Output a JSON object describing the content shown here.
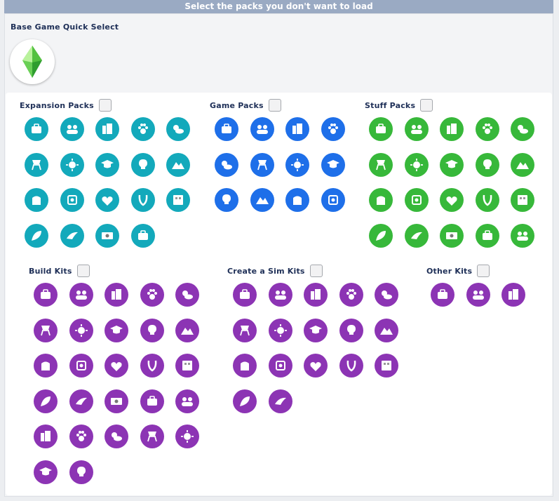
{
  "header": {
    "title": "Select the packs you don't want to load"
  },
  "base_game": {
    "label": "Base Game Quick Select",
    "icon": "plumbob-icon"
  },
  "colors": {
    "expansion": "#13a9bb",
    "game": "#1e6fe9",
    "stuff": "#37b83a",
    "kit": "#8c34b4"
  },
  "sections": {
    "expansion": {
      "label": "Expansion Packs",
      "checked": false,
      "icons": [
        "briefcase-icon",
        "people-group-icon",
        "city-buildings-icon",
        "paw-print-icon",
        "weather-sun-cloud-icon",
        "directors-chair-icon",
        "island-palm-icon",
        "graduation-cap-icon",
        "lightbulb-icon",
        "snowy-mountains-icon",
        "bottle-icon",
        "cottage-cake-icon",
        "house-icon",
        "horseshoe-icon",
        "apartment-building-icon",
        "heart-flower-icon",
        "crow-icon",
        "money-envelope-icon",
        "fern-leaf-icon"
      ]
    },
    "game": {
      "label": "Game Packs",
      "checked": false,
      "icons": [
        "campfire-icon",
        "lotus-icon",
        "fork-knife-icon",
        "vampire-fangs-icon",
        "family-icon",
        "tiki-mask-icon",
        "potion-flask-icon",
        "spellbook-icon",
        "paint-palette-icon",
        "house-upload-icon",
        "cake-stand-icon",
        "wolf-moon-icon"
      ]
    },
    "stuff": {
      "label": "Stuff Packs",
      "checked": false,
      "icons": [
        "diamond-icon",
        "sofa-icon",
        "ice-cream-icon",
        "pumpkin-icon",
        "popcorn-icon",
        "rose-icon",
        "kids-icon",
        "lemonade-icon",
        "tuxedo-icon",
        "bowling-icon",
        "sneaker-icon",
        "toy-blocks-icon",
        "laundry-basket-icon",
        "hamster-icon",
        "letter-m-icon",
        "tiny-house-icon",
        "salad-bowl-icon",
        "toddler-icon",
        "garden-tools-icon",
        "necklace-icon"
      ]
    },
    "build_kits": {
      "label": "Build Kits",
      "checked": false,
      "icons": [
        "pool-tote-icon",
        "arch-window-icon",
        "mandala-icon",
        "potted-plant-icon",
        "peacock-icon",
        "frog-icon",
        "jar-icon",
        "strawberry-icon",
        "mail-icon",
        "tape-measure-icon",
        "sprout-icon",
        "retro-tv-icon",
        "book-stack-icon",
        "lamp-icon",
        "crest-icon",
        "disco-ball-icon",
        "lounge-chair-icon",
        "wine-bottle-icon",
        "hot-air-balloon-icon",
        "artist-palette-icon",
        "cassette-icon",
        "heart-monitor-icon",
        "egg-chair-icon",
        "fridge-icon",
        "tools-icon",
        "plant-pot-icon",
        "bunk-bed-icon"
      ]
    },
    "cas_kits": {
      "label": "Create a Sim Kits",
      "checked": false,
      "icons": [
        "sneaker-icon",
        "feather-icon",
        "boots-icon",
        "patterned-shirt-icon",
        "masquerade-mask-icon",
        "jacket-icon",
        "backpack-icon",
        "bikini-icon",
        "scarf-icon",
        "open-jacket-icon",
        "skull-icon",
        "platform-boot-icon",
        "sleep-mask-icon",
        "watch-icon",
        "ribbon-bow-icon",
        "sunflower-icon",
        "lips-icon"
      ]
    },
    "other_kits": {
      "label": "Other Kits",
      "checked": false,
      "icons": [
        "vacuum-icon",
        "vanity-icon",
        "sunglasses-icon"
      ]
    }
  }
}
